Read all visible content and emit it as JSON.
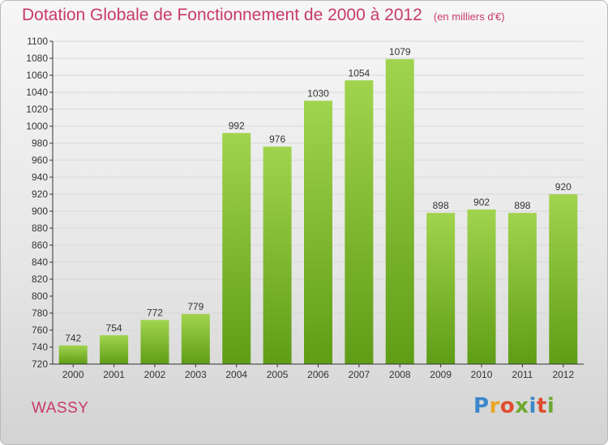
{
  "title": "Dotation Globale de Fonctionnement de 2000 à 2012",
  "unit_note": "(en milliers d'€)",
  "commune": "WASSY",
  "logo": {
    "text": "Proxiti",
    "colors": [
      "#3a87c9",
      "#e8a623",
      "#e04c30",
      "#6fa832",
      "#3a87c9",
      "#e04c30",
      "#6fa832"
    ]
  },
  "colors": {
    "title": "#c8396b",
    "bar_top": "#a1d44e",
    "bar_bottom": "#5f9d16",
    "grid": "#d8d8d8",
    "axis": "#333333"
  },
  "chart_data": {
    "type": "bar",
    "title": "Dotation Globale de Fonctionnement de 2000 à 2012",
    "xlabel": "",
    "ylabel": "",
    "categories": [
      "2000",
      "2001",
      "2002",
      "2003",
      "2004",
      "2005",
      "2006",
      "2007",
      "2008",
      "2009",
      "2010",
      "2011",
      "2012"
    ],
    "values": [
      742,
      754,
      772,
      779,
      992,
      976,
      1030,
      1054,
      1079,
      898,
      902,
      898,
      920
    ],
    "ylim": [
      720,
      1100
    ],
    "yticks": [
      720,
      740,
      760,
      780,
      800,
      820,
      840,
      860,
      880,
      900,
      920,
      940,
      960,
      980,
      1000,
      1020,
      1040,
      1060,
      1080,
      1100
    ],
    "grid": true,
    "legend": "none"
  }
}
